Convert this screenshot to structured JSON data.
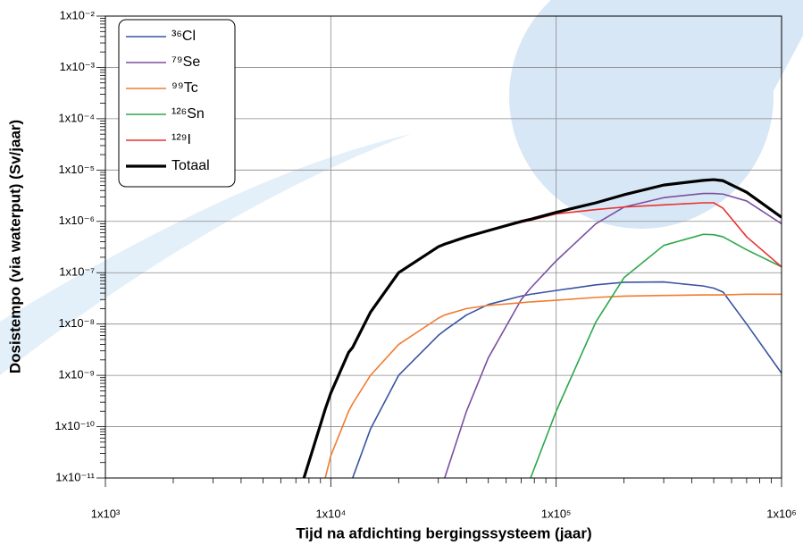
{
  "chart_data": {
    "type": "line",
    "xlabel": "Tijd na afdichting bergingssysteem (jaar)",
    "ylabel": "Dosistempo (via waterput) (Sv/jaar)",
    "xscale": "log",
    "yscale": "log",
    "grid": true,
    "legend": "upper left",
    "xlim": [
      1000,
      1000000
    ],
    "ylim": [
      1e-11,
      0.01
    ],
    "xticks": [
      {
        "value": 1000,
        "label": "1x10³"
      },
      {
        "value": 10000,
        "label": "1x10⁴"
      },
      {
        "value": 100000,
        "label": "1x10⁵"
      },
      {
        "value": 1000000,
        "label": "1x10⁶"
      }
    ],
    "yticks": [
      {
        "value": 1e-11,
        "label": "1x10⁻¹¹"
      },
      {
        "value": 1e-10,
        "label": "1x10⁻¹⁰"
      },
      {
        "value": 1e-09,
        "label": "1x10⁻⁹"
      },
      {
        "value": 1e-08,
        "label": "1x10⁻⁸"
      },
      {
        "value": 1e-07,
        "label": "1x10⁻⁷"
      },
      {
        "value": 1e-06,
        "label": "1x10⁻⁶"
      },
      {
        "value": 1e-05,
        "label": "1x10⁻⁵"
      },
      {
        "value": 0.0001,
        "label": "1x10⁻⁴"
      },
      {
        "value": 0.001,
        "label": "1x10⁻³"
      },
      {
        "value": 0.01,
        "label": "1x10⁻²"
      }
    ],
    "x": [
      7600,
      9000,
      9450,
      10000,
      12000,
      12500,
      15000,
      20000,
      30000,
      32000,
      40000,
      50000,
      70000,
      77000,
      100000,
      150000,
      200000,
      300000,
      450000,
      500000,
      550000,
      700000,
      1000000
    ],
    "series": [
      {
        "name": "³⁶Cl",
        "color": "#3953a4",
        "width": 1.6,
        "values": [
          null,
          null,
          null,
          null,
          null,
          1e-11,
          9e-11,
          1e-09,
          6e-09,
          7.5e-09,
          1.5e-08,
          2.4e-08,
          3.5e-08,
          3.8e-08,
          4.5e-08,
          5.8e-08,
          6.5e-08,
          6.6e-08,
          5.5e-08,
          5e-08,
          4.2e-08,
          1e-08,
          1.1e-09
        ]
      },
      {
        "name": "⁷⁹Se",
        "color": "#7b4fa0",
        "width": 1.6,
        "values": [
          null,
          null,
          null,
          null,
          null,
          null,
          null,
          null,
          null,
          1e-11,
          2e-10,
          2.2e-09,
          3e-08,
          5e-08,
          1.7e-07,
          9e-07,
          1.9e-06,
          2.9e-06,
          3.5e-06,
          3.5e-06,
          3.4e-06,
          2.5e-06,
          9e-07
        ]
      },
      {
        "name": "⁹⁹Tc",
        "color": "#f07c2f",
        "width": 1.6,
        "values": [
          null,
          null,
          1e-11,
          2.7e-11,
          2e-10,
          2.8e-10,
          1e-09,
          4e-09,
          1.3e-08,
          1.5e-08,
          2e-08,
          2.3e-08,
          2.6e-08,
          2.7e-08,
          2.9e-08,
          3.3e-08,
          3.5e-08,
          3.6e-08,
          3.7e-08,
          3.7e-08,
          3.7e-08,
          3.8e-08,
          3.8e-08
        ]
      },
      {
        "name": "¹²⁶Sn",
        "color": "#2aa84a",
        "width": 1.6,
        "values": [
          null,
          null,
          null,
          null,
          null,
          null,
          null,
          null,
          null,
          null,
          null,
          null,
          null,
          1e-11,
          2e-10,
          1.1e-08,
          8e-08,
          3.4e-07,
          5.6e-07,
          5.5e-07,
          5e-07,
          2.8e-07,
          1.3e-07
        ]
      },
      {
        "name": "¹²⁹I",
        "color": "#e8312f",
        "width": 1.6,
        "values": [
          1e-11,
          1.1e-10,
          2.2e-10,
          4.5e-10,
          2.8e-09,
          3.5e-09,
          1.7e-08,
          1e-07,
          3.2e-07,
          3.6e-07,
          5e-07,
          6.5e-07,
          9.6e-07,
          1.05e-06,
          1.4e-06,
          1.7e-06,
          1.9e-06,
          2.1e-06,
          2.3e-06,
          2.3e-06,
          1.8e-06,
          5e-07,
          1.3e-07
        ]
      },
      {
        "name": "Totaal",
        "color": "#000000",
        "width": 3.2,
        "values": [
          1e-11,
          1.1e-10,
          2.2e-10,
          4.5e-10,
          2.8e-09,
          3.5e-09,
          1.7e-08,
          1e-07,
          3.2e-07,
          3.6e-07,
          5e-07,
          6.6e-07,
          1e-06,
          1.1e-06,
          1.5e-06,
          2.3e-06,
          3.3e-06,
          5.1e-06,
          6.3e-06,
          6.5e-06,
          6.2e-06,
          3.7e-06,
          1.2e-06
        ]
      }
    ]
  }
}
